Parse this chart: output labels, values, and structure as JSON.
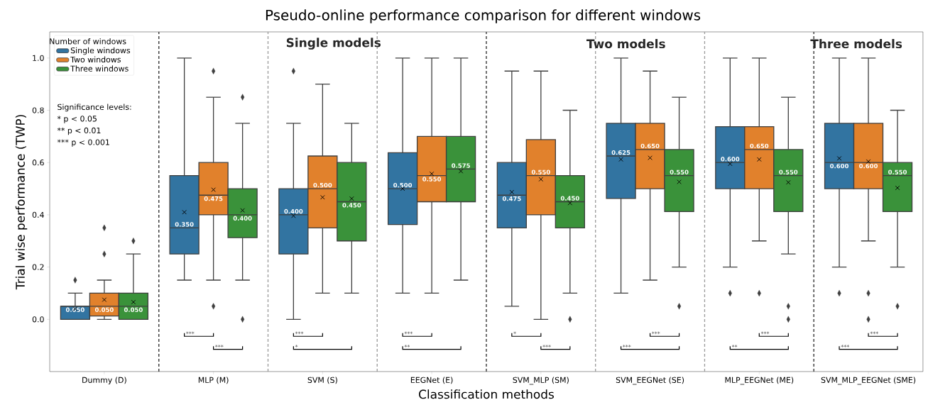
{
  "chart_data": {
    "type": "box",
    "title": "Pseudo-online performance comparison for different windows",
    "xlabel": "Classification methods",
    "ylabel": "Trial wise performance (TWP)",
    "legend_title": "Number of windows",
    "categories": [
      "Dummy (D)",
      "MLP (M)",
      "SVM (S)",
      "EEGNet (E)",
      "SVM_MLP (SM)",
      "SVM_EEGNet (SE)",
      "MLP_EEGNet (ME)",
      "SVM_MLP_EEGNet (SME)"
    ],
    "ylim": [
      -0.2,
      1.1
    ],
    "yticks": [
      {
        "value": 0,
        "label": "0.0"
      },
      {
        "value": 0.2,
        "label": "0.2"
      },
      {
        "value": 0.4,
        "label": "0.4"
      },
      {
        "value": 0.6,
        "label": "0.6"
      },
      {
        "value": 0.8,
        "label": "0.8"
      },
      {
        "value": 1.0,
        "label": "1.0"
      }
    ],
    "grid": false,
    "legend": "top left",
    "series": [
      {
        "name": "Single windows",
        "color": "#3274a1",
        "value_labels": [
          "0.050",
          "0.350",
          "0.400",
          "0.500",
          "0.475",
          "0.625",
          "0.600",
          "0.600"
        ],
        "boxes": [
          {
            "low": 0,
            "q1": 0,
            "median": 0.05,
            "q3": 0.05,
            "high": 0.1,
            "mean": 0.04,
            "outliers": [
              0.15
            ]
          },
          {
            "low": 0.15,
            "q1": 0.25,
            "median": 0.35,
            "q3": 0.55,
            "high": 1.0,
            "mean": 0.41
          },
          {
            "low": 0,
            "q1": 0.25,
            "median": 0.4,
            "q3": 0.5,
            "high": 0.75,
            "mean": 0.396,
            "outliers": [
              0.95
            ]
          },
          {
            "low": 0.1,
            "q1": 0.3625,
            "median": 0.5,
            "q3": 0.6375,
            "high": 1.0,
            "mean": 0.5
          },
          {
            "low": 0.05,
            "q1": 0.35,
            "median": 0.475,
            "q3": 0.6,
            "high": 0.95,
            "mean": 0.487
          },
          {
            "low": 0.1,
            "q1": 0.4625,
            "median": 0.625,
            "q3": 0.75,
            "high": 1.0,
            "mean": 0.612
          },
          {
            "low": 0.2,
            "q1": 0.5,
            "median": 0.6,
            "q3": 0.7375,
            "high": 1.0,
            "mean": 0.595,
            "outliers": [
              0.1
            ]
          },
          {
            "low": 0.2,
            "q1": 0.5,
            "median": 0.6,
            "q3": 0.75,
            "high": 1.0,
            "mean": 0.616,
            "outliers": [
              0.1
            ]
          }
        ]
      },
      {
        "name": "Two windows",
        "color": "#e1812c",
        "value_labels": [
          "0.050",
          "0.475",
          "0.500",
          "0.550",
          "0.550",
          "0.650",
          "0.650",
          "0.600"
        ],
        "boxes": [
          {
            "low": 0,
            "q1": 0.0125,
            "median": 0.05,
            "q3": 0.1,
            "high": 0.15,
            "mean": 0.075,
            "outliers": [
              0.25,
              0.35
            ]
          },
          {
            "low": 0.15,
            "q1": 0.4,
            "median": 0.475,
            "q3": 0.6,
            "high": 0.85,
            "mean": 0.496,
            "outliers": [
              0.95,
              0.05
            ]
          },
          {
            "low": 0.1,
            "q1": 0.35,
            "median": 0.5,
            "q3": 0.625,
            "high": 0.9,
            "mean": 0.467
          },
          {
            "low": 0.1,
            "q1": 0.45,
            "median": 0.55,
            "q3": 0.7,
            "high": 1.0,
            "mean": 0.557
          },
          {
            "low": 0,
            "q1": 0.4,
            "median": 0.55,
            "q3": 0.6875,
            "high": 0.95,
            "mean": 0.536
          },
          {
            "low": 0.15,
            "q1": 0.5,
            "median": 0.65,
            "q3": 0.75,
            "high": 0.95,
            "mean": 0.618
          },
          {
            "low": 0.3,
            "q1": 0.5,
            "median": 0.65,
            "q3": 0.7375,
            "high": 1.0,
            "mean": 0.612,
            "outliers": [
              0.1
            ]
          },
          {
            "low": 0.3,
            "q1": 0.5,
            "median": 0.6,
            "q3": 0.75,
            "high": 1.0,
            "mean": 0.604,
            "outliers": [
              0.1,
              0
            ]
          }
        ]
      },
      {
        "name": "Three windows",
        "color": "#3a923a",
        "value_labels": [
          "0.050",
          "0.400",
          "0.450",
          "0.575",
          "0.450",
          "0.550",
          "0.550",
          "0.550"
        ],
        "boxes": [
          {
            "low": 0,
            "q1": 0,
            "median": 0.05,
            "q3": 0.1,
            "high": 0.25,
            "mean": 0.066,
            "outliers": [
              0.3
            ]
          },
          {
            "low": 0.15,
            "q1": 0.3125,
            "median": 0.4,
            "q3": 0.5,
            "high": 0.75,
            "mean": 0.417,
            "outliers": [
              0.85,
              0
            ]
          },
          {
            "low": 0.1,
            "q1": 0.3,
            "median": 0.45,
            "q3": 0.6,
            "high": 0.75,
            "mean": 0.462
          },
          {
            "low": 0.15,
            "q1": 0.45,
            "median": 0.575,
            "q3": 0.7,
            "high": 1.0,
            "mean": 0.567
          },
          {
            "low": 0.1,
            "q1": 0.35,
            "median": 0.45,
            "q3": 0.55,
            "high": 0.8,
            "mean": 0.445,
            "outliers": [
              0
            ]
          },
          {
            "low": 0.2,
            "q1": 0.4125,
            "median": 0.55,
            "q3": 0.65,
            "high": 0.85,
            "mean": 0.526,
            "outliers": [
              0.05
            ]
          },
          {
            "low": 0.25,
            "q1": 0.4125,
            "median": 0.55,
            "q3": 0.65,
            "high": 0.85,
            "mean": 0.524,
            "outliers": [
              0.05,
              0
            ]
          },
          {
            "low": 0.2,
            "q1": 0.4125,
            "median": 0.55,
            "q3": 0.6,
            "high": 0.8,
            "mean": 0.503,
            "outliers": [
              0.05
            ]
          }
        ]
      }
    ],
    "annotations": [
      "Single models",
      "Two models",
      "Three models",
      "Significance levels:",
      "* p < 0.05",
      "** p < 0.01",
      "*** p < 0.001",
      "***",
      "***",
      "***",
      "*",
      "***",
      "**",
      "*",
      "***",
      "***",
      "***",
      "***",
      "**",
      "***",
      "***"
    ]
  }
}
